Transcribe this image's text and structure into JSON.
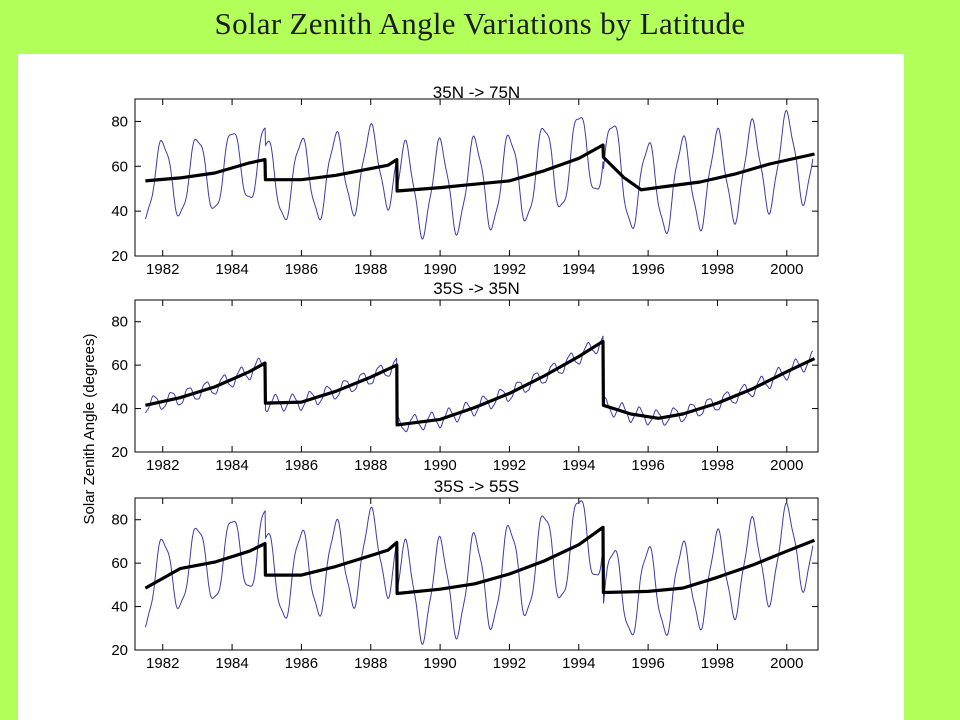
{
  "slide_title": "Solar Zenith Angle Variations by Latitude",
  "y_axis_label": "Solar Zenith Angle (degrees)",
  "colors": {
    "background": "#b3ff5a",
    "seasonal_line": "#3c3ca8",
    "trend_line": "#000000"
  },
  "chart_data": [
    {
      "type": "line",
      "title": "35N -> 75N",
      "xlabel": "",
      "ylabel": "Solar Zenith Angle (degrees)",
      "xlim": [
        1981.2,
        2000.9
      ],
      "ylim": [
        20,
        90
      ],
      "xticks": [
        1982,
        1984,
        1986,
        1988,
        1990,
        1992,
        1994,
        1996,
        1998,
        2000
      ],
      "xtick_labels": [
        "1982",
        "1984",
        "1986",
        "1988",
        "1990",
        "1992",
        "1994",
        "1996",
        "1998",
        "2000"
      ],
      "yticks": [
        20,
        40,
        60,
        80
      ],
      "ytick_labels": [
        "20",
        "40",
        "60",
        "80"
      ],
      "series": [
        {
          "role": "trend",
          "x": [
            1981.5,
            1982.5,
            1983.5,
            1984.5,
            1984.95,
            1984.96,
            1986,
            1987,
            1988.5,
            1988.75,
            1988.76,
            1990,
            1991,
            1992,
            1993,
            1994,
            1994.7,
            1994.71,
            1995.3,
            1995.8,
            1996.5,
            1997.5,
            1998.5,
            1999.5,
            2000.8
          ],
          "y": [
            53.5,
            54.8,
            57,
            61.5,
            63,
            54,
            54,
            56,
            60.5,
            63,
            49,
            50.5,
            52,
            53.5,
            58,
            63.5,
            69.5,
            64,
            55,
            49.5,
            51,
            53,
            56.5,
            61,
            65.5
          ]
        },
        {
          "role": "seasonal",
          "x_start": 1981.5,
          "x_end": 2000.75,
          "period_years": 1.0,
          "amplitude_segments": [
            {
              "from": 1981.5,
              "to": 1984.95,
              "amplitude": 17
            },
            {
              "from": 1984.95,
              "to": 1988.75,
              "amplitude": 18
            },
            {
              "from": 1988.75,
              "to": 1994.7,
              "amplitude": 20
            },
            {
              "from": 1994.7,
              "to": 2000.75,
              "amplitude": 20
            }
          ]
        }
      ]
    },
    {
      "type": "line",
      "title": "35S -> 35N",
      "xlabel": "",
      "ylabel": "Solar Zenith Angle (degrees)",
      "xlim": [
        1981.2,
        2000.9
      ],
      "ylim": [
        20,
        90
      ],
      "xticks": [
        1982,
        1984,
        1986,
        1988,
        1990,
        1992,
        1994,
        1996,
        1998,
        2000
      ],
      "xtick_labels": [
        "1982",
        "1984",
        "1986",
        "1988",
        "1990",
        "1992",
        "1994",
        "1996",
        "1998",
        "2000"
      ],
      "yticks": [
        20,
        40,
        60,
        80
      ],
      "ytick_labels": [
        "20",
        "40",
        "60",
        "80"
      ],
      "series": [
        {
          "role": "trend",
          "x": [
            1981.5,
            1982.5,
            1983.5,
            1984.5,
            1984.95,
            1984.96,
            1986,
            1987,
            1988,
            1988.75,
            1988.76,
            1990,
            1991,
            1992,
            1993,
            1994,
            1994.7,
            1994.71,
            1995.5,
            1996.3,
            1997,
            1998,
            1999,
            2000,
            2000.8
          ],
          "y": [
            41.5,
            45,
            50,
            57,
            61,
            42.5,
            43,
            48,
            54.5,
            60,
            32.5,
            35,
            40.5,
            47,
            55,
            64,
            71,
            41.5,
            37.5,
            35.5,
            37.5,
            42.5,
            49,
            57,
            63
          ]
        },
        {
          "role": "seasonal",
          "x_start": 1981.5,
          "x_end": 2000.75,
          "period_years": 0.5,
          "amplitude_segments": [
            {
              "from": 1981.5,
              "to": 2000.75,
              "amplitude": 3.5
            }
          ]
        }
      ]
    },
    {
      "type": "line",
      "title": "35S -> 55S",
      "xlabel": "",
      "ylabel": "Solar Zenith Angle (degrees)",
      "xlim": [
        1981.2,
        2000.9
      ],
      "ylim": [
        20,
        90
      ],
      "xticks": [
        1982,
        1984,
        1986,
        1988,
        1990,
        1992,
        1994,
        1996,
        1998,
        2000
      ],
      "xtick_labels": [
        "1982",
        "1984",
        "1986",
        "1988",
        "1990",
        "1992",
        "1994",
        "1996",
        "1998",
        "2000"
      ],
      "yticks": [
        20,
        40,
        60,
        80
      ],
      "ytick_labels": [
        "20",
        "40",
        "60",
        "80"
      ],
      "series": [
        {
          "role": "trend",
          "x": [
            1981.5,
            1982.5,
            1983.5,
            1984.5,
            1984.95,
            1984.96,
            1986,
            1987,
            1988.5,
            1988.75,
            1988.76,
            1990,
            1991,
            1992,
            1993,
            1994,
            1994.7,
            1994.71,
            1996,
            1997,
            1998,
            1999,
            2000,
            2000.8
          ],
          "y": [
            48.5,
            57.5,
            60.5,
            65.5,
            69,
            54.5,
            54.5,
            58.5,
            66,
            69.5,
            46,
            48,
            50.5,
            55,
            61,
            68.5,
            76.5,
            46.5,
            47,
            48.5,
            53.5,
            59,
            65.5,
            70.5
          ]
        },
        {
          "role": "seasonal",
          "x_start": 1981.5,
          "x_end": 2000.75,
          "period_years": 1.0,
          "amplitude_segments": [
            {
              "from": 1981.5,
              "to": 1984.95,
              "amplitude": 18
            },
            {
              "from": 1984.95,
              "to": 1988.75,
              "amplitude": 20
            },
            {
              "from": 1988.75,
              "to": 1994.7,
              "amplitude": 22
            },
            {
              "from": 1994.7,
              "to": 2000.75,
              "amplitude": 20
            }
          ]
        }
      ]
    }
  ]
}
